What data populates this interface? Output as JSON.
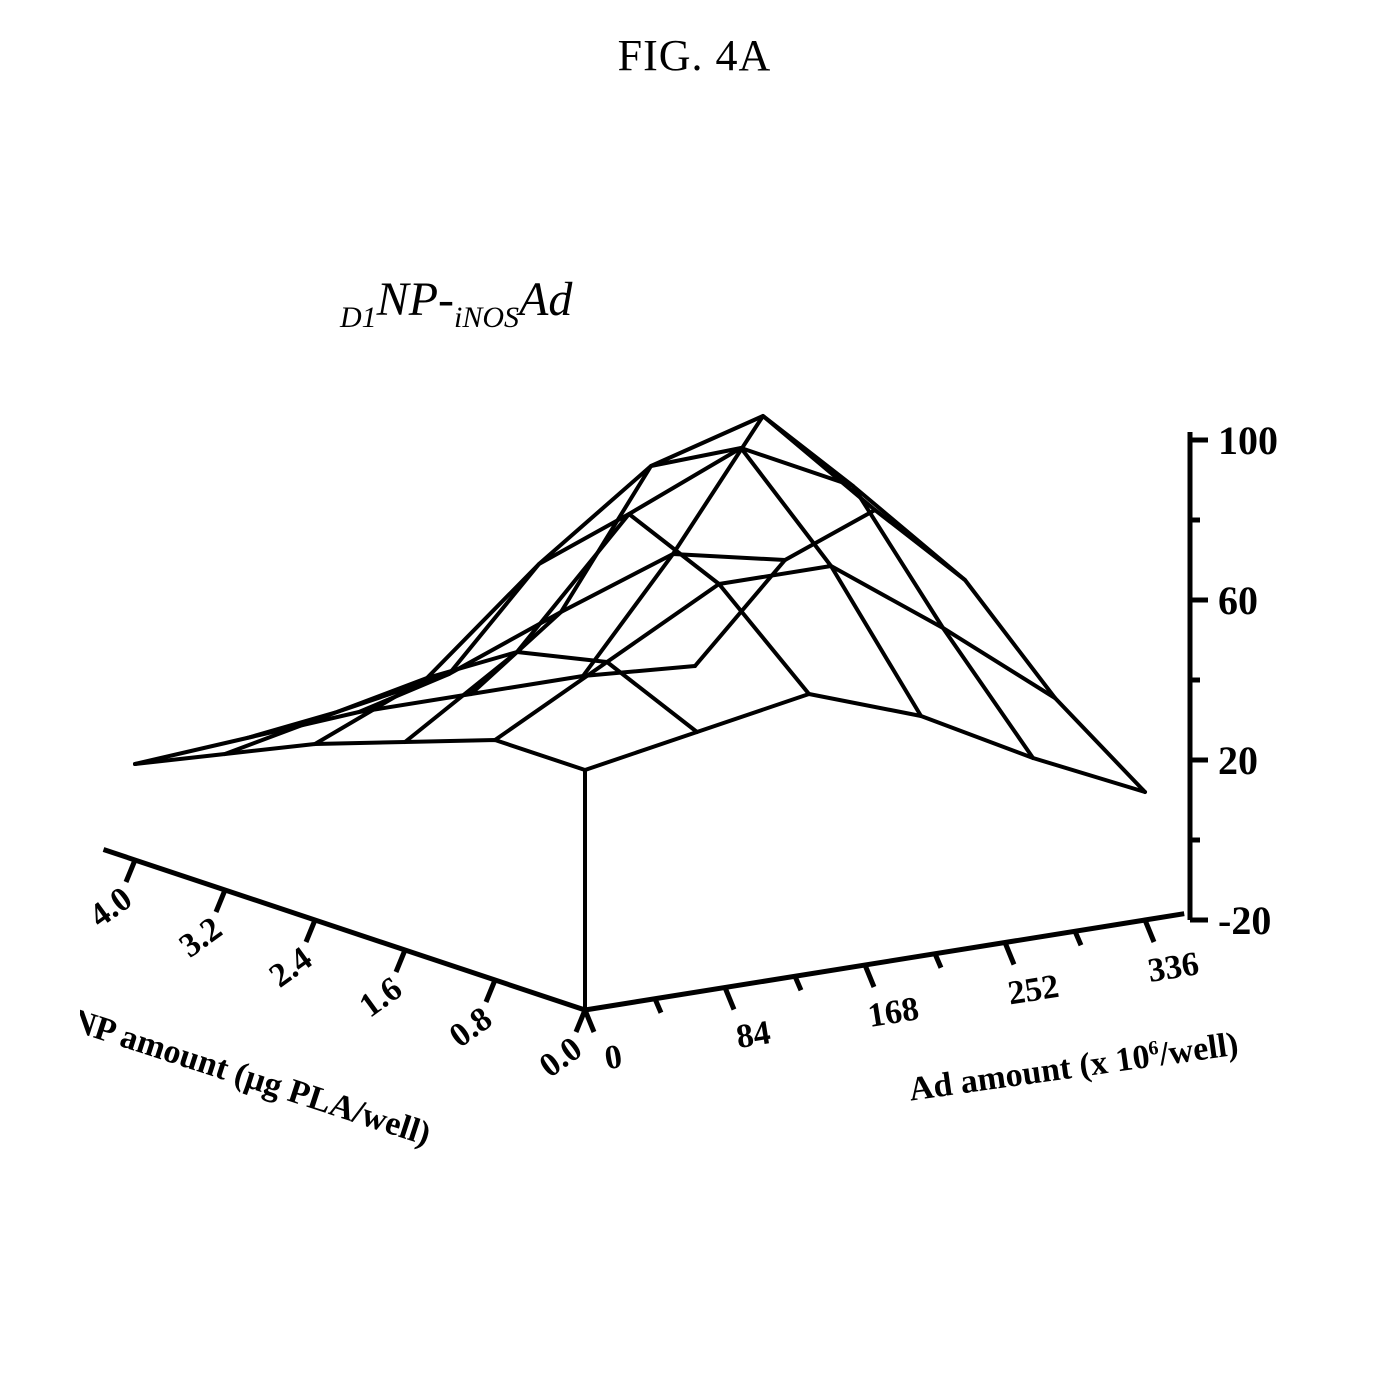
{
  "figure_title": "FIG. 4A",
  "chart": {
    "type": "3d-surface",
    "label_parts": {
      "p1": "D1",
      "p2": "NP-",
      "p3": "iNOS",
      "p4": "Ad"
    },
    "label_fontsize_main": 48,
    "label_fontsize_sub": 30,
    "x_axis": {
      "title_parts": {
        "a": "Ad amount (x 10",
        "sup": "6",
        "b": "/well)"
      },
      "title_fontsize": 34,
      "ticks": [
        "0",
        "84",
        "168",
        "252",
        "336"
      ],
      "tick_fontsize": 34
    },
    "y_axis": {
      "title": "NP amount (µg PLA/well)",
      "title_fontsize": 34,
      "ticks": [
        "4.0",
        "3.2",
        "2.4",
        "1.6",
        "0.8",
        "0.0"
      ],
      "tick_fontsize": 34
    },
    "z_axis": {
      "ticks": [
        "100",
        "60",
        "20",
        "-20"
      ],
      "tick_fontsize": 40,
      "range": [
        -20,
        100
      ]
    },
    "grid": {
      "nx": 6,
      "ny": 6,
      "z": [
        [
          40,
          40,
          32,
          24,
          14,
          4
        ],
        [
          45,
          55,
          50,
          36,
          20,
          6
        ],
        [
          50,
          70,
          80,
          60,
          25,
          8
        ],
        [
          40,
          70,
          92,
          80,
          36,
          8
        ],
        [
          25,
          50,
          78,
          88,
          46,
          8
        ],
        [
          12,
          28,
          50,
          60,
          40,
          6
        ]
      ]
    },
    "colors": {
      "background": "#ffffff",
      "line": "#000000"
    },
    "line_width_mesh": 4,
    "line_width_axis": 5
  }
}
